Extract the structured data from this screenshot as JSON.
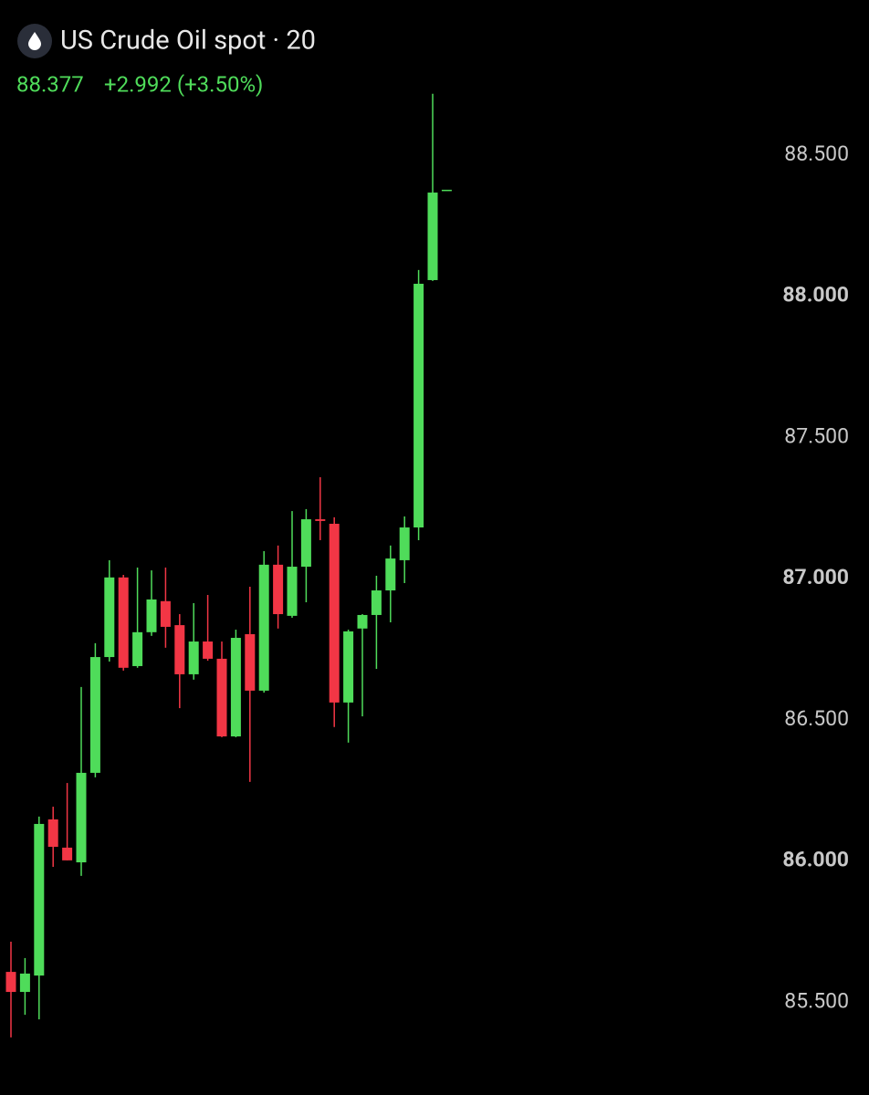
{
  "chart_data": {
    "type": "candlestick",
    "title": "US Crude Oil spot · 20",
    "price_label": "88.377",
    "change_label": "+2.992 (+3.50%)",
    "up_color": "#4fdc5a",
    "down_color": "#f23645",
    "open": [
      85.607,
      85.536,
      85.594,
      86.147,
      86.047,
      85.995,
      86.312,
      86.722,
      87.004,
      86.69,
      86.81,
      86.92,
      86.835,
      86.661,
      86.777,
      86.716,
      86.441,
      86.803,
      86.603,
      87.049,
      86.868,
      87.042,
      87.21,
      87.194,
      86.561,
      86.823,
      86.871,
      86.958,
      87.065,
      87.181,
      88.057,
      88.377
    ],
    "high": [
      85.714,
      85.656,
      86.157,
      86.192,
      86.276,
      86.616,
      86.771,
      87.065,
      87.013,
      87.039,
      87.029,
      87.039,
      86.874,
      86.913,
      86.942,
      86.777,
      86.819,
      86.971,
      87.097,
      87.117,
      87.239,
      87.246,
      87.359,
      87.217,
      86.819,
      86.874,
      87.01,
      87.117,
      87.22,
      88.093,
      88.717,
      88.377
    ],
    "low": [
      85.375,
      85.455,
      85.439,
      85.979,
      86.002,
      85.947,
      86.296,
      86.706,
      86.674,
      86.684,
      86.797,
      86.755,
      86.541,
      86.642,
      86.709,
      86.438,
      86.438,
      86.28,
      86.596,
      86.823,
      86.861,
      86.916,
      87.136,
      86.474,
      86.419,
      86.512,
      86.68,
      86.845,
      86.984,
      87.136,
      88.054,
      88.377
    ],
    "close": [
      85.536,
      85.601,
      86.131,
      86.05,
      86.002,
      86.312,
      86.722,
      87.004,
      86.684,
      86.81,
      86.926,
      86.829,
      86.661,
      86.777,
      86.716,
      86.441,
      86.79,
      86.603,
      87.049,
      86.874,
      87.042,
      87.21,
      87.204,
      86.561,
      86.813,
      86.871,
      86.958,
      87.071,
      87.181,
      88.044,
      88.367,
      88.377
    ],
    "ylim": [
      85.171,
      89.049
    ],
    "yticks": [
      {
        "value": 85.5,
        "label": "85.500"
      },
      {
        "value": 86,
        "label": "86.000"
      },
      {
        "value": 86.5,
        "label": "86.500"
      },
      {
        "value": 87,
        "label": "87.000"
      },
      {
        "value": 87.5,
        "label": "87.500"
      },
      {
        "value": 88,
        "label": "88.000"
      },
      {
        "value": 88.5,
        "label": "88.500"
      }
    ]
  }
}
